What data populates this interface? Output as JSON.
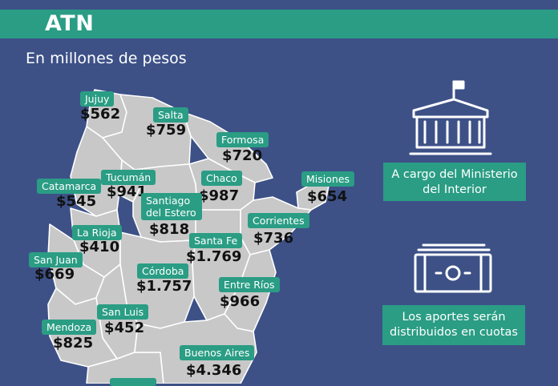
{
  "header": {
    "title": "ATN",
    "subtitle": "En millones de pesos"
  },
  "provinces": [
    {
      "name": "Jujuy",
      "value": "$562"
    },
    {
      "name": "Salta",
      "value": "$759"
    },
    {
      "name": "Formosa",
      "value": "$720"
    },
    {
      "name": "Catamarca",
      "value": "$545"
    },
    {
      "name": "Tucumán",
      "value": "$941"
    },
    {
      "name": "Chaco",
      "value": "$987"
    },
    {
      "name": "Misiones",
      "value": "$654"
    },
    {
      "name": "Santiago del Estero",
      "value": "$818"
    },
    {
      "name": "Corrientes",
      "value": "$736"
    },
    {
      "name": "La Rioja",
      "value": "$410"
    },
    {
      "name": "Santa Fe",
      "value": "$1.769"
    },
    {
      "name": "San Juan",
      "value": "$669"
    },
    {
      "name": "Córdoba",
      "value": "$1.757"
    },
    {
      "name": "Entre Ríos",
      "value": "$966"
    },
    {
      "name": "San Luis",
      "value": "$452"
    },
    {
      "name": "Mendoza",
      "value": "$825"
    },
    {
      "name": "Buenos Aires",
      "value": "$4.346"
    }
  ],
  "info": [
    {
      "icon": "government-building-icon",
      "text": "A cargo del Ministerio del Interior"
    },
    {
      "icon": "banknote-icon",
      "text": "Los aportes serán distribuidos en cuotas"
    }
  ],
  "colors": {
    "background": "#3d5187",
    "accent": "#2a9d84",
    "map_fill": "#c8c8c8",
    "map_border": "#ffffff",
    "value_text": "#111111"
  }
}
